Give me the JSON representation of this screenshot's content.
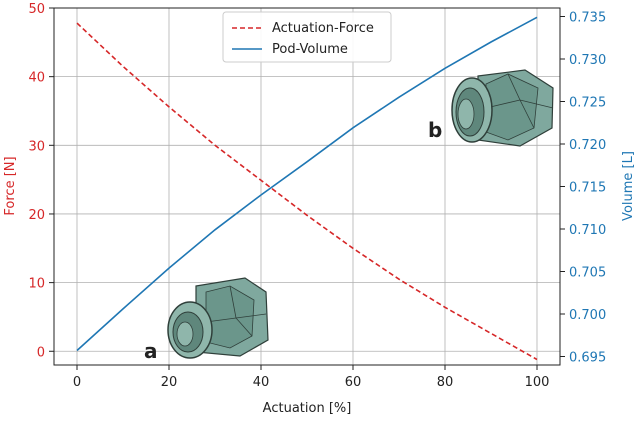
{
  "chart_data": {
    "type": "line",
    "xlabel": "Actuation [%]",
    "ylabel_left": "Force [N]",
    "ylabel_right": "Volume [L]",
    "xlim": [
      -5,
      105
    ],
    "ylim_left": [
      -2,
      50
    ],
    "ylim_right": [
      0.694,
      0.736
    ],
    "x_ticks": [
      "0",
      "20",
      "40",
      "60",
      "80",
      "100"
    ],
    "y_left_ticks": [
      "0",
      "10",
      "20",
      "30",
      "40",
      "50"
    ],
    "y_right_ticks": [
      "0.695",
      "0.700",
      "0.705",
      "0.710",
      "0.715",
      "0.720",
      "0.725",
      "0.730",
      "0.735"
    ],
    "grid": true,
    "legend_position": "top-center",
    "series": [
      {
        "name": "Actuation-Force",
        "axis": "left",
        "style": "dashed",
        "color": "#d62728",
        "x": [
          0,
          10,
          20,
          30,
          40,
          50,
          60,
          70,
          80,
          90,
          100
        ],
        "y": [
          47.8,
          41.5,
          35.6,
          30.0,
          24.9,
          19.8,
          15.0,
          10.5,
          6.4,
          2.6,
          -1.2
        ]
      },
      {
        "name": "Pod-Volume",
        "axis": "right",
        "style": "solid",
        "color": "#1f77b4",
        "x": [
          0,
          10,
          20,
          30,
          40,
          50,
          60,
          70,
          80,
          90,
          100
        ],
        "y": [
          0.6957,
          0.7006,
          0.7054,
          0.7099,
          0.714,
          0.7179,
          0.7219,
          0.7255,
          0.7289,
          0.732,
          0.7349
        ]
      }
    ],
    "annotations": [
      "a",
      "b"
    ]
  }
}
